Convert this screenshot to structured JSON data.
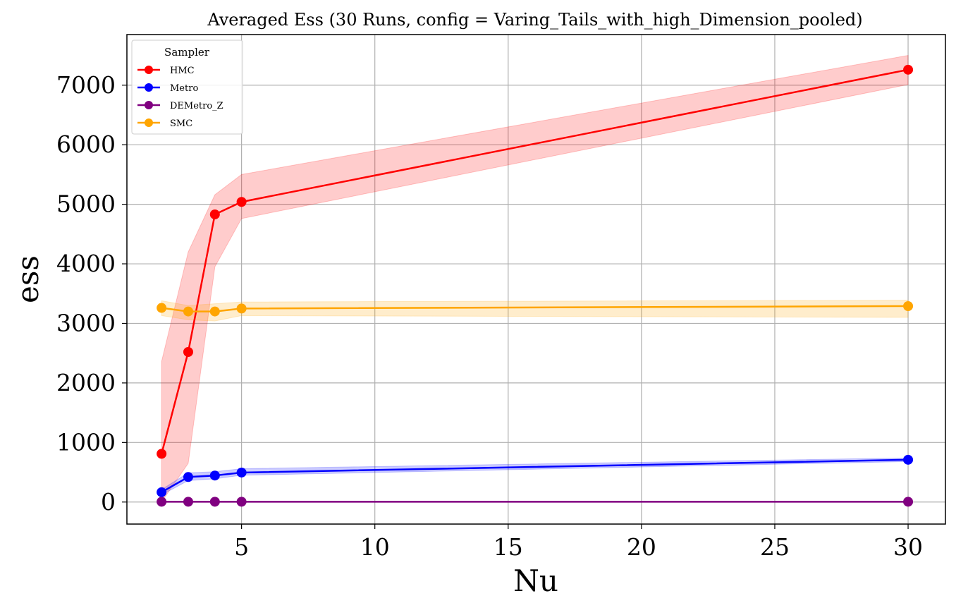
{
  "chart_data": {
    "type": "line",
    "title": "Averaged Ess (30 Runs, config = Varing_Tails_with_high_Dimension_pooled)",
    "xlabel": "Nu",
    "ylabel": "ess",
    "x": [
      2,
      3,
      4,
      5,
      30
    ],
    "xlim": [
      0.7,
      31.4
    ],
    "ylim": [
      -370,
      7850
    ],
    "xticks": [
      5,
      10,
      15,
      20,
      25,
      30
    ],
    "yticks": [
      0,
      1000,
      2000,
      3000,
      4000,
      5000,
      6000,
      7000
    ],
    "grid": true,
    "legend": {
      "title": "Sampler",
      "position": "top-left"
    },
    "series": [
      {
        "name": "HMC",
        "color": "#ff0000",
        "band_color": "#ff0000",
        "band_opacity": 0.2,
        "values": [
          810,
          2520,
          4830,
          5040,
          7260
        ],
        "lower": [
          0,
          650,
          3950,
          4760,
          7010
        ],
        "upper": [
          2360,
          4200,
          5160,
          5500,
          7500
        ]
      },
      {
        "name": "Metro",
        "color": "#0000ff",
        "band_color": "#0000ff",
        "band_opacity": 0.2,
        "values": [
          165,
          420,
          445,
          495,
          710
        ],
        "lower": [
          120,
          360,
          390,
          450,
          680
        ],
        "upper": [
          210,
          490,
          510,
          560,
          740
        ]
      },
      {
        "name": "DEMetro_Z",
        "color": "#800080",
        "band_color": "#800080",
        "band_opacity": 0.2,
        "values": [
          5,
          5,
          5,
          5,
          5
        ],
        "lower": [
          0,
          0,
          0,
          0,
          0
        ],
        "upper": [
          10,
          10,
          10,
          10,
          10
        ]
      },
      {
        "name": "SMC",
        "color": "#ffa500",
        "band_color": "#ffa500",
        "band_opacity": 0.2,
        "values": [
          3260,
          3200,
          3200,
          3250,
          3290
        ],
        "lower": [
          3130,
          3060,
          3040,
          3130,
          3100
        ],
        "upper": [
          3380,
          3300,
          3330,
          3360,
          3390
        ]
      }
    ]
  }
}
